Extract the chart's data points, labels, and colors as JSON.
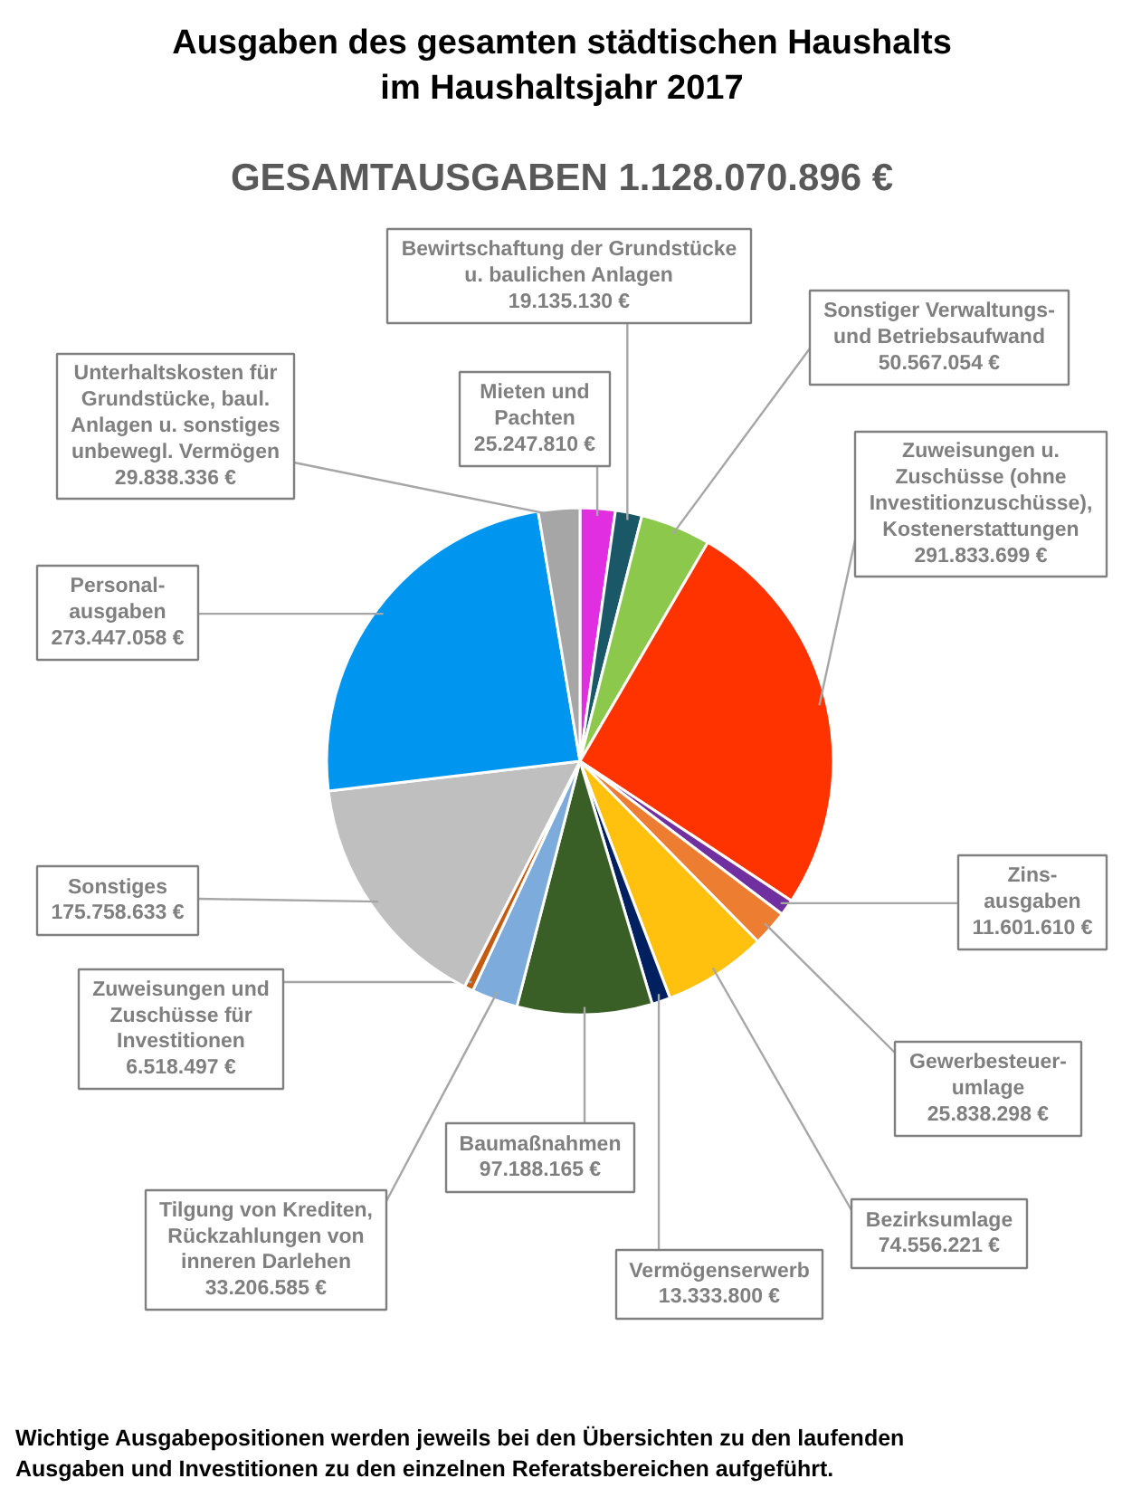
{
  "chart_data": {
    "type": "pie",
    "title": "Ausgaben des gesamten städtischen Haushalts\nim Haushaltsjahr 2017",
    "subtitle": "GESAMTAUSGABEN 1.128.070.896 €",
    "categories": [
      "Mieten und\nPachten",
      "Bewirtschaftung der Grundstücke\nu. baulichen Anlagen",
      "Sonstiger Verwaltungs-\nund Betriebsaufwand",
      "Zuweisungen u.\nZuschüsse (ohne\nInvestitionzuschüsse),\nKostenerstattungen",
      "Zins-\nausgaben",
      "Gewerbesteuer-\numlage",
      "Bezirksumlage",
      "Vermögenserwerb",
      "Baumaßnahmen",
      "Tilgung von Krediten,\nRückzahlungen von\ninneren Darlehen",
      "Zuweisungen und\nZuschüsse für\nInvestitionen",
      "Sonstiges",
      "Personal-\nausgaben",
      "Unterhaltskosten für\nGrundstücke, baul.\nAnlagen u. sonstiges\nunbewegl. Vermögen"
    ],
    "values": [
      25247810,
      19135130,
      50567054,
      291833699,
      11601610,
      25838298,
      74556221,
      13333800,
      97188165,
      33206585,
      6518497,
      175758633,
      273447058,
      29838336
    ],
    "value_labels": [
      "25.247.810 €",
      "19.135.130 €",
      "50.567.054 €",
      "291.833.699 €",
      "11.601.610 €",
      "25.838.298 €",
      "74.556.221 €",
      "13.333.800 €",
      "97.188.165 €",
      "33.206.585 €",
      "6.518.497 €",
      "175.758.633 €",
      "273.447.058 €",
      "29.838.336 €"
    ],
    "colors": [
      "#e02ee0",
      "#1a5868",
      "#8cc84b",
      "#ff3300",
      "#7030a0",
      "#ed7d31",
      "#ffc10e",
      "#002060",
      "#3a5f26",
      "#7dabdc",
      "#c55a11",
      "#bfbfbf",
      "#0096f0",
      "#a6a6a6"
    ],
    "annotations": [
      "Wichtige Ausgabepositionen werden jeweils bei den Übersichten zu den laufenden\nAusgaben und Investitionen zu den einzelnen Referatsbereichen aufgeführt."
    ]
  }
}
